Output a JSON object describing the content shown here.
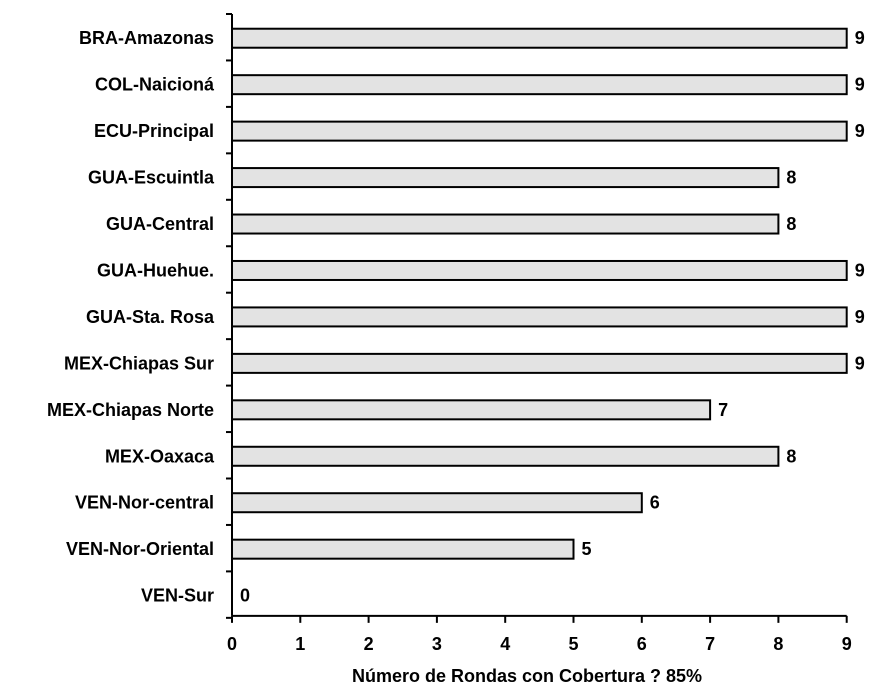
{
  "chart_data": {
    "type": "bar",
    "orientation": "horizontal",
    "categories": [
      "BRA-Amazonas",
      "COL-Naicioná",
      "ECU-Principal",
      "GUA-Escuintla",
      "GUA-Central",
      "GUA-Huehue.",
      "GUA-Sta. Rosa",
      "MEX-Chiapas Sur",
      "MEX-Chiapas Norte",
      "MEX-Oaxaca",
      "VEN-Nor-central",
      "VEN-Nor-Oriental",
      "VEN-Sur"
    ],
    "values": [
      9,
      9,
      9,
      8,
      8,
      9,
      9,
      9,
      7,
      8,
      6,
      5,
      0
    ],
    "xlabel": "Número de Rondas con Cobertura  ? 85%",
    "ylabel": "",
    "title": "",
    "xlim": [
      0,
      9
    ],
    "xticks": [
      "0",
      "1",
      "2",
      "3",
      "4",
      "5",
      "6",
      "7",
      "8",
      "9"
    ],
    "data_labels": true,
    "bar_color": "#e3e3e3",
    "bar_border_color": "#000000",
    "grid": false,
    "legend": "none"
  }
}
